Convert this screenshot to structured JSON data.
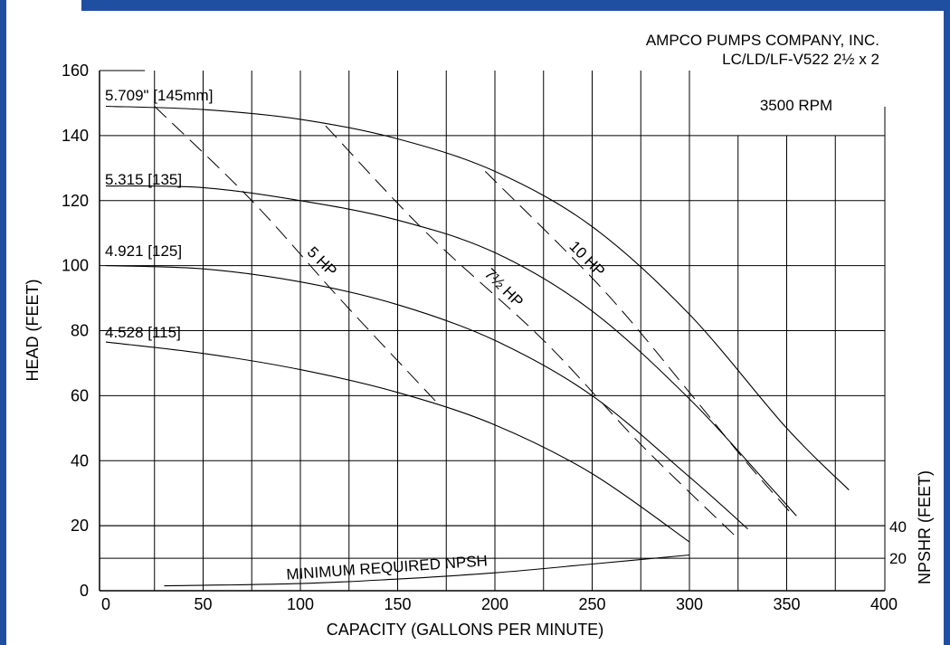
{
  "colors": {
    "frame_blue": "#1f4fa0",
    "ink": "#000000",
    "background": "#ffffff"
  },
  "chart_data": {
    "type": "line",
    "title": "AMPCO PUMPS COMPANY, INC.",
    "subtitle": "LC/LD/LF-V522 2½ x 2",
    "annotation_rpm": "3500 RPM",
    "xlabel": "CAPACITY (GALLONS PER MINUTE)",
    "ylabel": "HEAD (FEET)",
    "y2label": "NPSHR (FEET)",
    "xlim": [
      0,
      400
    ],
    "ylim": [
      0,
      160
    ],
    "x_ticks": [
      0,
      50,
      100,
      150,
      200,
      250,
      300,
      350,
      400
    ],
    "y_ticks": [
      0,
      20,
      40,
      60,
      80,
      100,
      120,
      140,
      160
    ],
    "grid": true,
    "impeller_curves": [
      {
        "name": "5.709\" [145mm]",
        "x": [
          0,
          50,
          100,
          150,
          200,
          250,
          300,
          350,
          382
        ],
        "y": [
          149,
          148,
          145,
          139,
          129,
          112,
          85,
          50,
          31
        ]
      },
      {
        "name": "5.315 [135]",
        "x": [
          0,
          50,
          100,
          150,
          200,
          250,
          300,
          340,
          355
        ],
        "y": [
          124.5,
          124,
          120,
          114,
          104,
          86,
          59,
          33,
          23
        ]
      },
      {
        "name": "4.921 [125]",
        "x": [
          0,
          50,
          100,
          150,
          200,
          250,
          300,
          330
        ],
        "y": [
          100,
          99,
          95,
          88,
          77,
          60,
          35,
          19
        ]
      },
      {
        "name": "4.528 [115]",
        "x": [
          0,
          50,
          100,
          150,
          200,
          250,
          300
        ],
        "y": [
          76.5,
          73,
          68,
          61,
          51,
          36,
          15
        ]
      }
    ],
    "power_curves": [
      {
        "name": "5 HP",
        "x": [
          25,
          75,
          120,
          170
        ],
        "y": [
          149,
          120,
          90,
          58
        ]
      },
      {
        "name": "7½ HP",
        "x": [
          113,
          165,
          225,
          275,
          325
        ],
        "y": [
          143,
          110,
          77,
          45,
          16
        ]
      },
      {
        "name": "10 HP",
        "x": [
          195,
          255,
          300,
          330,
          352
        ],
        "y": [
          129,
          93,
          61,
          39,
          24
        ]
      }
    ],
    "npsh_curve": {
      "name": "MINIMUM REQUIRED NPSH",
      "x": [
        30,
        100,
        150,
        200,
        250,
        300
      ],
      "y": [
        1.5,
        2.2,
        3.6,
        5.5,
        8.2,
        11
      ]
    },
    "npshr_ticks": [
      {
        "label": "40",
        "y": 20
      },
      {
        "label": "20",
        "y": 10
      }
    ]
  }
}
